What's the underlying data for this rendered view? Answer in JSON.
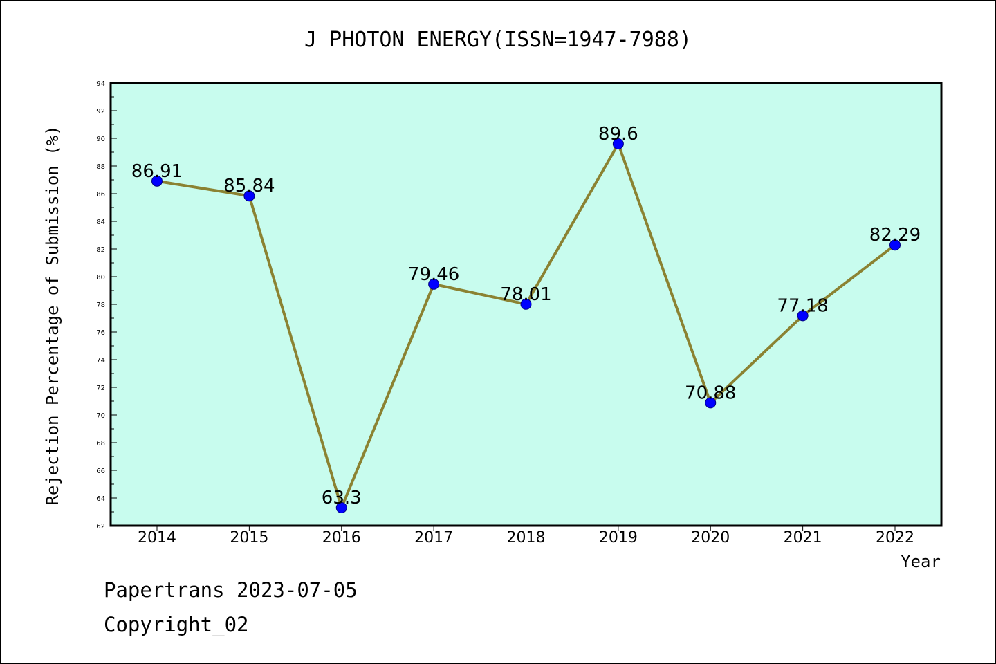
{
  "footer": {
    "line1": "Papertrans 2023-07-05",
    "line2": "Copyright_02"
  },
  "chart_data": {
    "type": "line",
    "title": "J PHOTON ENERGY(ISSN=1947-7988)",
    "xlabel": "Year",
    "ylabel": "Rejection Percentage of Submission (%)",
    "categories": [
      "2014",
      "2015",
      "2016",
      "2017",
      "2018",
      "2019",
      "2020",
      "2021",
      "2022"
    ],
    "values": [
      86.91,
      85.84,
      63.3,
      79.46,
      78.01,
      89.6,
      70.88,
      77.18,
      82.29
    ],
    "data_labels": [
      "86.91",
      "85.84",
      "63.3",
      "79.46",
      "78.01",
      "89.6",
      "70.88",
      "77.18",
      "82.29"
    ],
    "ylim": [
      62,
      94
    ],
    "yticks": [
      62,
      64,
      66,
      68,
      70,
      72,
      74,
      76,
      78,
      80,
      82,
      84,
      86,
      88,
      90,
      92,
      94
    ],
    "grid": false,
    "legend": "none",
    "colors": {
      "plot_background": "#c8fcee",
      "line": "#8b8232",
      "marker": "#0000ff",
      "marker_edge": "#000080"
    }
  }
}
